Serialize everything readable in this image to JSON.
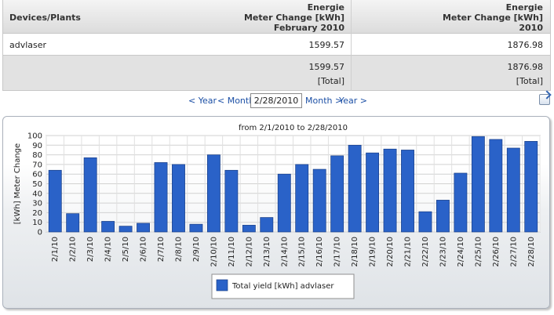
{
  "table": {
    "headers": {
      "col1": "Devices/Plants",
      "col2": [
        "Energie",
        "Meter Change [kWh]",
        "February 2010"
      ],
      "col3": [
        "Energie",
        "Meter Change [kWh]",
        "2010"
      ]
    },
    "rows": [
      {
        "device": "advlaser",
        "month_value": "1599.57",
        "year_value": "1876.98"
      }
    ],
    "total": {
      "month_value": "1599.57",
      "year_value": "1876.98",
      "month_label": "[Total]",
      "year_label": "[Total]"
    }
  },
  "nav": {
    "prev_year": "< Year",
    "prev_month": "< Month",
    "date": "2/28/2010",
    "next_month": "Month >",
    "next_year": "Year >"
  },
  "chart_data": {
    "type": "bar",
    "title": "from 2/1/2010 to 2/28/2010",
    "ylabel": "[kWh] Meter Change",
    "xlabel": "",
    "ylim": [
      0,
      100
    ],
    "yticks": [
      0,
      10,
      20,
      30,
      40,
      50,
      60,
      70,
      80,
      90,
      100
    ],
    "grid": true,
    "legend_position": "bottom-center",
    "bar_color": "#2a62c8",
    "categories": [
      "2/1/10",
      "2/2/10",
      "2/3/10",
      "2/4/10",
      "2/5/10",
      "2/6/10",
      "2/7/10",
      "2/8/10",
      "2/9/10",
      "2/10/10",
      "2/11/10",
      "2/12/10",
      "2/13/10",
      "2/14/10",
      "2/15/10",
      "2/16/10",
      "2/17/10",
      "2/18/10",
      "2/19/10",
      "2/20/10",
      "2/21/10",
      "2/22/10",
      "2/23/10",
      "2/24/10",
      "2/25/10",
      "2/26/10",
      "2/27/10",
      "2/28/10"
    ],
    "series": [
      {
        "name": "Total yield [kWh] advlaser",
        "values": [
          64,
          19,
          77,
          11,
          6,
          9,
          72,
          70,
          8,
          80,
          64,
          7,
          15,
          60,
          70,
          65,
          79,
          90,
          82,
          86,
          85,
          21,
          33,
          61,
          99,
          96,
          87,
          94
        ]
      }
    ]
  }
}
